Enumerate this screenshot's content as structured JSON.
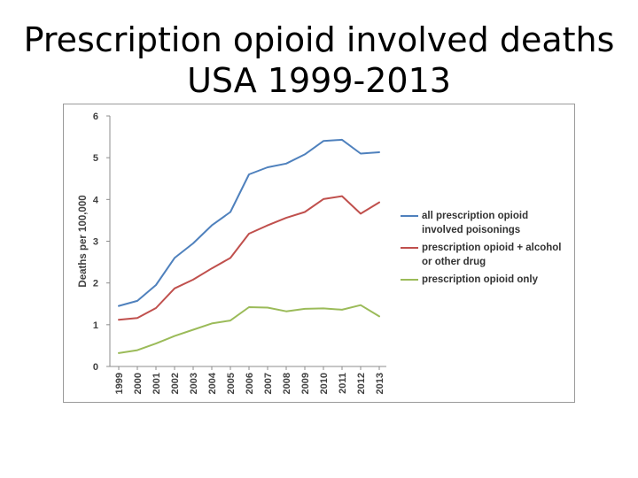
{
  "slide": {
    "title_line1": "Prescription opioid involved deaths",
    "title_line2": "USA 1999-2013"
  },
  "chart_data": {
    "type": "line",
    "title": "",
    "xlabel": "",
    "ylabel": "Deaths per 100,000",
    "ylim": [
      0,
      6
    ],
    "yticks": [
      0,
      1,
      2,
      3,
      4,
      5,
      6
    ],
    "grid": false,
    "legend_position": "right",
    "categories": [
      "1999",
      "2000",
      "2001",
      "2002",
      "2003",
      "2004",
      "2005",
      "2006",
      "2007",
      "2008",
      "2009",
      "2010",
      "2011",
      "2012",
      "2013"
    ],
    "series": [
      {
        "name": "all prescription opioid involved poisonings",
        "legend_lines": [
          "all prescription opioid",
          "involved poisonings"
        ],
        "color": "#4f81bd",
        "values": [
          1.45,
          1.57,
          1.95,
          2.6,
          2.95,
          3.38,
          3.7,
          4.6,
          4.77,
          4.86,
          5.08,
          5.4,
          5.43,
          5.1,
          5.13
        ]
      },
      {
        "name": "prescription opioid + alcohol or other drug",
        "legend_lines": [
          "prescription opioid + alcohol",
          "or other drug"
        ],
        "color": "#c0504d",
        "values": [
          1.12,
          1.16,
          1.4,
          1.87,
          2.08,
          2.35,
          2.6,
          3.18,
          3.38,
          3.56,
          3.7,
          4.01,
          4.08,
          3.66,
          3.93
        ]
      },
      {
        "name": "prescription opioid only",
        "legend_lines": [
          "prescription opioid only"
        ],
        "color": "#9bbb59",
        "values": [
          0.32,
          0.39,
          0.55,
          0.73,
          0.88,
          1.03,
          1.1,
          1.42,
          1.41,
          1.32,
          1.38,
          1.39,
          1.36,
          1.47,
          1.2
        ]
      }
    ]
  }
}
